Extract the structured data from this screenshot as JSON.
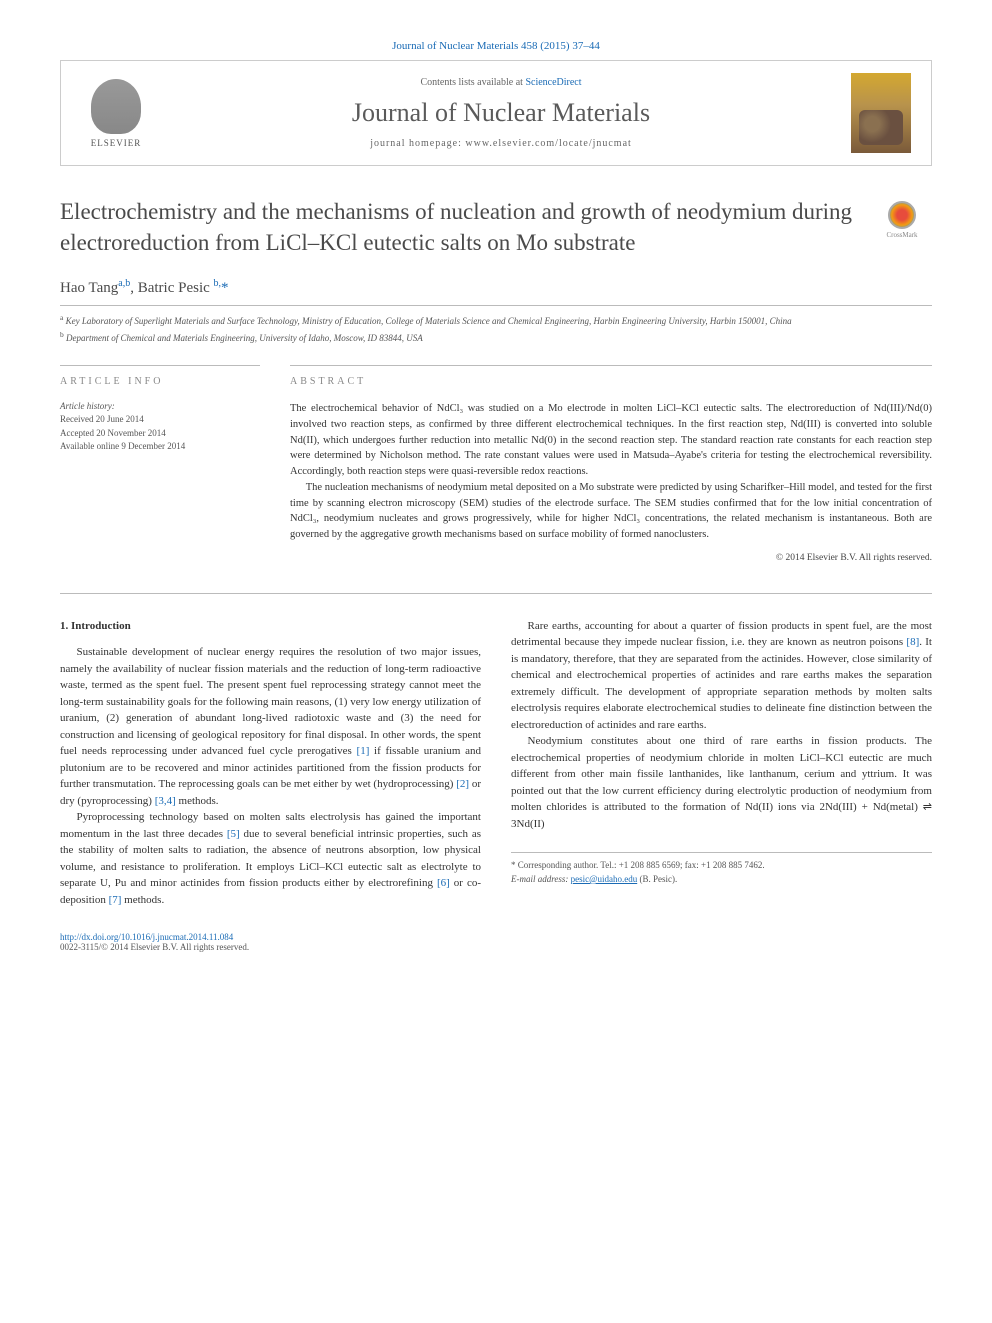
{
  "header": {
    "citation": "Journal of Nuclear Materials 458 (2015) 37–44",
    "contents_prefix": "Contents lists available at ",
    "contents_link": "ScienceDirect",
    "journal_name": "Journal of Nuclear Materials",
    "homepage_prefix": "journal homepage: ",
    "homepage_url": "www.elsevier.com/locate/jnucmat",
    "publisher": "ELSEVIER",
    "crossmark": "CrossMark"
  },
  "title": "Electrochemistry and the mechanisms of nucleation and growth of neodymium during electroreduction from LiCl–KCl eutectic salts on Mo substrate",
  "authors_line": "Hao Tang",
  "authors_sup1": "a,b",
  "authors_sep": ", Batric Pesic ",
  "authors_sup2": "b,",
  "authors_star": "*",
  "affiliations": {
    "a": "Key Laboratory of Superlight Materials and Surface Technology, Ministry of Education, College of Materials Science and Chemical Engineering, Harbin Engineering University, Harbin 150001, China",
    "b": "Department of Chemical and Materials Engineering, University of Idaho, Moscow, ID 83844, USA"
  },
  "info": {
    "heading": "ARTICLE INFO",
    "history_label": "Article history:",
    "received": "Received 20 June 2014",
    "accepted": "Accepted 20 November 2014",
    "online": "Available online 9 December 2014"
  },
  "abstract": {
    "heading": "ABSTRACT",
    "p1": "The electrochemical behavior of NdCl₃ was studied on a Mo electrode in molten LiCl–KCl eutectic salts. The electroreduction of Nd(III)/Nd(0) involved two reaction steps, as confirmed by three different electrochemical techniques. In the first reaction step, Nd(III) is converted into soluble Nd(II), which undergoes further reduction into metallic Nd(0) in the second reaction step. The standard reaction rate constants for each reaction step were determined by Nicholson method. The rate constant values were used in Matsuda–Ayabe's criteria for testing the electrochemical reversibility. Accordingly, both reaction steps were quasi-reversible redox reactions.",
    "p2": "The nucleation mechanisms of neodymium metal deposited on a Mo substrate were predicted by using Scharifker–Hill model, and tested for the first time by scanning electron microscopy (SEM) studies of the electrode surface. The SEM studies confirmed that for the low initial concentration of NdCl₃, neodymium nucleates and grows progressively, while for higher NdCl₃ concentrations, the related mechanism is instantaneous. Both are governed by the aggregative growth mechanisms based on surface mobility of formed nanoclusters.",
    "copyright": "© 2014 Elsevier B.V. All rights reserved."
  },
  "body": {
    "intro_heading": "1. Introduction",
    "p1a": "Sustainable development of nuclear energy requires the resolution of two major issues, namely the availability of nuclear fission materials and the reduction of long-term radioactive waste, termed as the spent fuel. The present spent fuel reprocessing strategy cannot meet the long-term sustainability goals for the following main reasons, (1) very low energy utilization of uranium, (2) generation of abundant long-lived radiotoxic waste and (3) the need for construction and licensing of geological repository for final disposal. In other words, the spent fuel needs reprocessing under advanced fuel cycle prerogatives ",
    "p1_ref1": "[1]",
    "p1b": " if fissable uranium and plutonium are to be recovered and minor actinides partitioned from the fission products for further transmutation. The reprocessing goals can be met either by wet (hydroprocessing) ",
    "p1_ref2": "[2]",
    "p1c": " or dry (pyroprocessing) ",
    "p1_ref3": "[3,4]",
    "p1d": " methods.",
    "p2a": "Pyroprocessing technology based on molten salts electrolysis has gained the important momentum in the last three decades ",
    "p2_ref1": "[5]",
    "p2b": " due to several beneficial intrinsic properties, such as the stability of molten salts to radiation, the absence of neutrons absorption, low physical volume, and resistance to proliferation. It employs LiCl–KCl eutectic salt as electrolyte to separate U, Pu and minor actinides from fission products either by electrorefining ",
    "p2_ref2": "[6]",
    "p2c": " or co-deposition ",
    "p2_ref3": "[7]",
    "p2d": " methods.",
    "p3a": "Rare earths, accounting for about a quarter of fission products in spent fuel, are the most detrimental because they impede nuclear fission, i.e. they are known as neutron poisons ",
    "p3_ref1": "[8]",
    "p3b": ". It is mandatory, therefore, that they are separated from the actinides. However, close similarity of chemical and electrochemical properties of actinides and rare earths makes the separation extremely difficult. The development of appropriate separation methods by molten salts electrolysis requires elaborate electrochemical studies to delineate fine distinction between the electroreduction of actinides and rare earths.",
    "p4": "Neodymium constitutes about one third of rare earths in fission products. The electrochemical properties of neodymium chloride in molten LiCl–KCl eutectic are much different from other main fissile lanthanides, like lanthanum, cerium and yttrium. It was pointed out that the low current efficiency during electrolytic production of neodymium from molten chlorides is attributed to the formation of Nd(II) ions via 2Nd(III) + Nd(metal) ⇌ 3Nd(II)"
  },
  "footnote": {
    "corr": "* Corresponding author. Tel.: +1 208 885 6569; fax: +1 208 885 7462.",
    "email_label": "E-mail address: ",
    "email": "pesic@uidaho.edu",
    "email_suffix": " (B. Pesic)."
  },
  "footer": {
    "doi": "http://dx.doi.org/10.1016/j.jnucmat.2014.11.084",
    "issn": "0022-3115/© 2014 Elsevier B.V. All rights reserved."
  },
  "colors": {
    "link": "#1a6bb5",
    "text": "#333333",
    "muted": "#888888",
    "border": "#bbbbbb"
  }
}
